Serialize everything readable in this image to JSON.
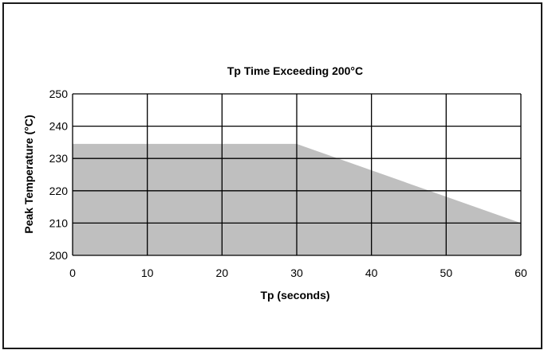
{
  "chart_data": {
    "type": "area",
    "title": "Tp Time Exceeding 200°C",
    "xlabel": "Tp (seconds)",
    "ylabel": "Peak Temperature (°C)",
    "xlim": [
      0,
      60
    ],
    "ylim": [
      200,
      250
    ],
    "x_ticks": [
      0,
      10,
      20,
      30,
      40,
      50,
      60
    ],
    "y_ticks": [
      200,
      210,
      220,
      230,
      240,
      250
    ],
    "x_tick_labels": [
      "0",
      "10",
      "20",
      "30",
      "40",
      "50",
      "60"
    ],
    "y_tick_labels": [
      "200",
      "210",
      "220",
      "230",
      "240",
      "250"
    ],
    "grid": true,
    "series": [
      {
        "x": [
          0,
          30,
          60
        ],
        "y": [
          234.5,
          234.5,
          210
        ],
        "fill_color": "#bfbfbf"
      }
    ],
    "grid_color": "#000000"
  }
}
